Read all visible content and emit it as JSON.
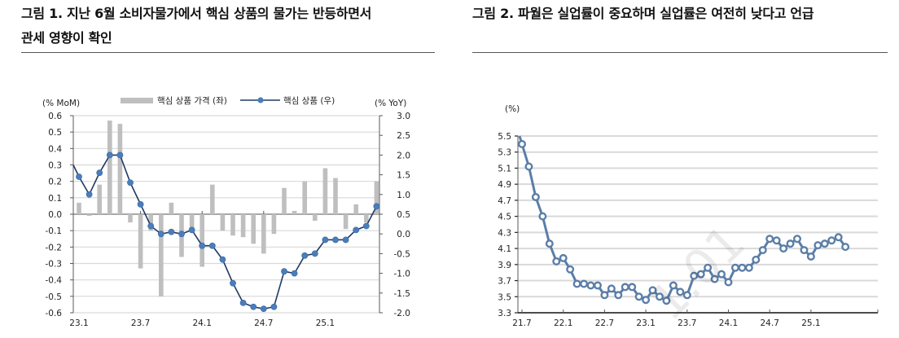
{
  "figure1": {
    "title_line1": "그림 1. 지난 6월 소비자물가에서 핵심 상품의 물가는 반등하면서",
    "title_line2": "관세 영향이 확인"
  },
  "figure2": {
    "title": "그림 2. 파월은 실업률이 중요하며 실업률은 여전히 낮다고 언급"
  },
  "watermark": "1.01",
  "colors": {
    "bar": "#bfbfbf",
    "line1": "#1f3864",
    "marker1": "#4a7ebb",
    "line2": "#5b7ea8",
    "grid": "#d9d9d9",
    "axis": "#595959"
  },
  "chart_data": [
    {
      "type": "bar+line",
      "title": "그림 1. 지난 6월 소비자물가에서 핵심 상품의 물가는 반등하면서 관세 영향이 확인",
      "ylabel_left": "(% MoM)",
      "ylabel_right": "(% YoY)",
      "ylim_left": [
        -0.6,
        0.6
      ],
      "ylim_right": [
        -2.0,
        3.0
      ],
      "yticks_left": [
        "0.6",
        "0.5",
        "0.4",
        "0.3",
        "0.2",
        "0.1",
        "0.0",
        "-0.1",
        "-0.2",
        "-0.3",
        "-0.4",
        "-0.5",
        "-0.6"
      ],
      "yticks_right": [
        "3.0",
        "2.5",
        "2.0",
        "1.5",
        "1.0",
        "0.5",
        "0.0",
        "-0.5",
        "-1.0",
        "-1.5",
        "-2.0"
      ],
      "xticks": [
        "23.1",
        "23.7",
        "24.1",
        "24.7",
        "25.1"
      ],
      "grid": true,
      "legend": [
        "핵심 상품 가격 (좌)",
        "핵심 상품 (우)"
      ],
      "legend_position": "top",
      "categories": [
        "23.1",
        "23.2",
        "23.3",
        "23.4",
        "23.5",
        "23.6",
        "23.7",
        "23.8",
        "23.9",
        "23.10",
        "23.11",
        "23.12",
        "24.1",
        "24.2",
        "24.3",
        "24.4",
        "24.5",
        "24.6",
        "24.7",
        "24.8",
        "24.9",
        "24.10",
        "24.11",
        "24.12",
        "25.1",
        "25.2",
        "25.3",
        "25.4",
        "25.5",
        "25.6"
      ],
      "series": [
        {
          "name": "핵심 상품 가격 (좌)",
          "type": "bar",
          "axis": "left",
          "values": [
            0.07,
            -0.01,
            0.18,
            0.57,
            0.55,
            -0.05,
            -0.33,
            -0.1,
            -0.5,
            0.07,
            -0.26,
            -0.1,
            -0.32,
            0.18,
            -0.1,
            -0.13,
            -0.14,
            -0.18,
            -0.24,
            -0.12,
            0.16,
            0.02,
            0.2,
            -0.04,
            0.28,
            0.22,
            -0.09,
            0.06,
            -0.05,
            0.2
          ]
        },
        {
          "name": "핵심 상품 (우)",
          "type": "line",
          "axis": "right",
          "values": [
            1.45,
            1.0,
            1.55,
            2.0,
            2.0,
            1.3,
            0.75,
            0.2,
            0.0,
            0.05,
            0.0,
            0.1,
            -0.3,
            -0.3,
            -0.65,
            -1.25,
            -1.75,
            -1.85,
            -1.9,
            -1.85,
            -0.95,
            -1.0,
            -0.55,
            -0.5,
            -0.15,
            -0.15,
            -0.15,
            0.1,
            0.2,
            0.7
          ]
        }
      ]
    },
    {
      "type": "line",
      "title": "그림 2. 파월은 실업률이 중요하며 실업률은 여전히 낮다고 언급",
      "ylabel": "(%)",
      "ylim": [
        3.3,
        5.5
      ],
      "yticks": [
        "5.5",
        "5.3",
        "5.1",
        "4.9",
        "4.7",
        "4.5",
        "4.3",
        "4.1",
        "3.9",
        "3.7",
        "3.5",
        "3.3"
      ],
      "xticks": [
        "21.7",
        "22.1",
        "22.7",
        "23.1",
        "23.7",
        "24.1",
        "24.7",
        "25.1"
      ],
      "grid": true,
      "categories": [
        "21.7",
        "21.8",
        "21.9",
        "21.10",
        "21.11",
        "21.12",
        "22.1",
        "22.2",
        "22.3",
        "22.4",
        "22.5",
        "22.6",
        "22.7",
        "22.8",
        "22.9",
        "22.10",
        "22.11",
        "22.12",
        "23.1",
        "23.2",
        "23.3",
        "23.4",
        "23.5",
        "23.6",
        "23.7",
        "23.8",
        "23.9",
        "23.10",
        "23.11",
        "23.12",
        "24.1",
        "24.2",
        "24.3",
        "24.4",
        "24.5",
        "24.6",
        "24.7",
        "24.8",
        "24.9",
        "24.10",
        "24.11",
        "24.12",
        "25.1",
        "25.2",
        "25.3",
        "25.4",
        "25.5",
        "25.6"
      ],
      "series": [
        {
          "name": "실업률",
          "values": [
            5.4,
            5.12,
            4.74,
            4.5,
            4.16,
            3.94,
            3.98,
            3.84,
            3.66,
            3.66,
            3.64,
            3.64,
            3.52,
            3.6,
            3.52,
            3.62,
            3.62,
            3.5,
            3.46,
            3.58,
            3.5,
            3.45,
            3.64,
            3.56,
            3.52,
            3.76,
            3.78,
            3.86,
            3.72,
            3.78,
            3.68,
            3.86,
            3.86,
            3.86,
            3.96,
            4.08,
            4.22,
            4.2,
            4.1,
            4.16,
            4.22,
            4.08,
            4.0,
            4.14,
            4.16,
            4.2,
            4.24,
            4.12
          ]
        }
      ]
    }
  ]
}
